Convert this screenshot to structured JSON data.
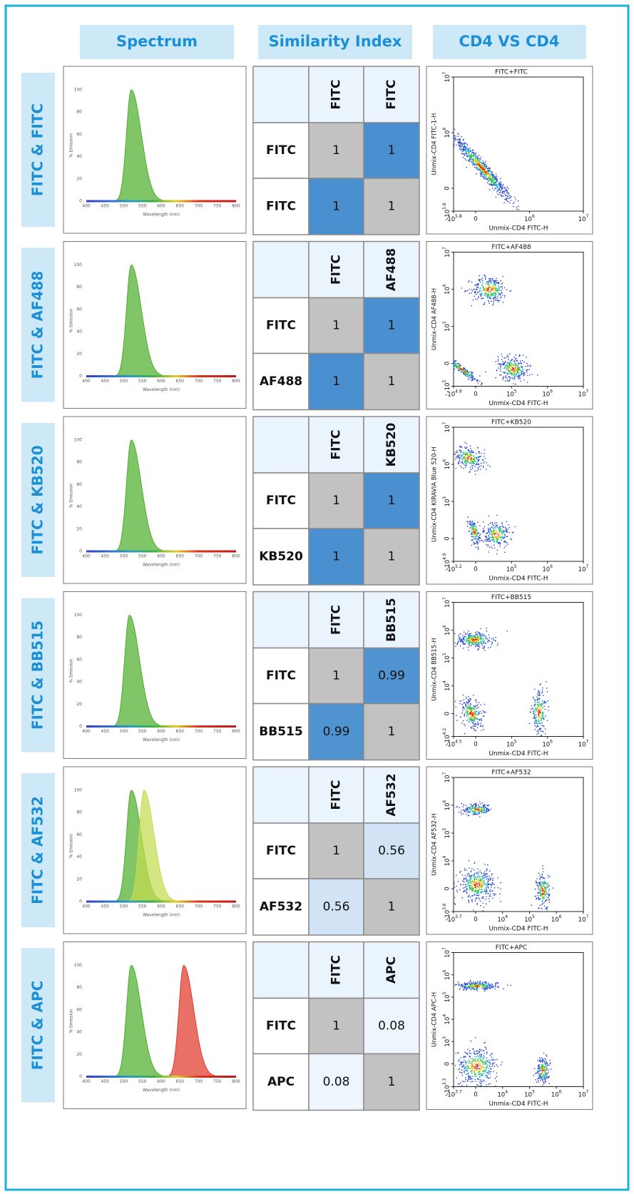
{
  "columns": [
    "Spectrum",
    "Similarity Index",
    "CD4 VS CD4"
  ],
  "spectrum_axis": {
    "x_label": "Wavelength (nm)",
    "y_label": "% Emission",
    "xticks": [
      400,
      450,
      500,
      550,
      600,
      650,
      700,
      750,
      800
    ],
    "yticks": [
      0,
      20,
      40,
      60,
      80,
      100
    ]
  },
  "rows": [
    {
      "label": "FITC & FITC",
      "dyes": [
        "FITC",
        "FITC"
      ],
      "emission_peaks": [
        520
      ],
      "colors": [
        "#4fae2c"
      ],
      "matrix": [
        [
          1,
          1
        ],
        [
          1,
          1
        ]
      ],
      "plot": {
        "title": "FITC+FITC",
        "x_label": "Unmix-CD4 FITC-H",
        "y_label": "Unmix-CD4 FITC-1-H",
        "xticks": [
          {
            "base": "-10",
            "exp": "5.8"
          },
          "0",
          {
            "base": "10",
            "exp": "6"
          },
          {
            "base": "10",
            "exp": "7"
          }
        ],
        "yticks": [
          {
            "base": "-10",
            "exp": "5.8"
          },
          "0",
          {
            "base": "10",
            "exp": "6"
          },
          {
            "base": "10",
            "exp": "7"
          }
        ]
      }
    },
    {
      "label": "FITC & AF488",
      "dyes": [
        "FITC",
        "AF488"
      ],
      "emission_peaks": [
        520
      ],
      "colors": [
        "#4fae2c"
      ],
      "matrix": [
        [
          1,
          1
        ],
        [
          1,
          1
        ]
      ],
      "plot": {
        "title": "FITC+AF488",
        "x_label": "Unmix-CD4 FITC-H",
        "y_label": "Unmix-CD4 AF488-H",
        "xticks": [
          {
            "base": "-10",
            "exp": "4.9"
          },
          "0",
          {
            "base": "10",
            "exp": "5"
          },
          {
            "base": "10",
            "exp": "6"
          },
          {
            "base": "10",
            "exp": "7"
          }
        ],
        "yticks": [
          {
            "base": "-10",
            "exp": "5"
          },
          "0",
          {
            "base": "10",
            "exp": "5"
          },
          {
            "base": "10",
            "exp": "6"
          },
          {
            "base": "10",
            "exp": "7"
          }
        ]
      }
    },
    {
      "label": "FITC & KB520",
      "dyes": [
        "FITC",
        "KB520"
      ],
      "emission_peaks": [
        520
      ],
      "colors": [
        "#4fae2c"
      ],
      "matrix": [
        [
          1,
          1
        ],
        [
          1,
          1
        ]
      ],
      "plot": {
        "title": "FITC+KB520",
        "x_label": "Unmix-CD4 FITC-H",
        "y_label": "Unmix-CD4 KIRAVIA Blue 520-H",
        "xticks": [
          {
            "base": "-10",
            "exp": "5.2"
          },
          "0",
          {
            "base": "10",
            "exp": "5"
          },
          {
            "base": "10",
            "exp": "6"
          },
          {
            "base": "10",
            "exp": "7"
          }
        ],
        "yticks": [
          {
            "base": "-10",
            "exp": "4.9"
          },
          "0",
          {
            "base": "10",
            "exp": "5"
          },
          {
            "base": "10",
            "exp": "6"
          },
          {
            "base": "10",
            "exp": "7"
          }
        ]
      }
    },
    {
      "label": "FITC & BB515",
      "dyes": [
        "FITC",
        "BB515"
      ],
      "emission_peaks": [
        515
      ],
      "colors": [
        "#4fae2c"
      ],
      "matrix": [
        [
          1,
          0.99
        ],
        [
          0.99,
          1
        ]
      ],
      "plot": {
        "title": "FITC+BB515",
        "x_label": "Unmix-CD4 FITC-H",
        "y_label": "Unmix-CD4 BB515-H",
        "xticks": [
          {
            "base": "-10",
            "exp": "4.5"
          },
          "0",
          {
            "base": "10",
            "exp": "5"
          },
          {
            "base": "10",
            "exp": "6"
          },
          {
            "base": "10",
            "exp": "7"
          }
        ],
        "yticks": [
          {
            "base": "-10",
            "exp": "4.2"
          },
          "0",
          {
            "base": "10",
            "exp": "4"
          },
          {
            "base": "10",
            "exp": "5"
          },
          {
            "base": "10",
            "exp": "6"
          },
          {
            "base": "10",
            "exp": "7"
          }
        ]
      }
    },
    {
      "label": "FITC & AF532",
      "dyes": [
        "FITC",
        "AF532"
      ],
      "emission_peaks": [
        520,
        554
      ],
      "colors": [
        "#4fae2c",
        "#c4dc52"
      ],
      "matrix": [
        [
          1,
          0.56
        ],
        [
          0.56,
          1
        ]
      ],
      "plot": {
        "title": "FITC+AF532",
        "x_label": "Unmix-CD4 FITC-H",
        "y_label": "Unmix-CD4 AF532-H",
        "xticks": [
          {
            "base": "-10",
            "exp": "3.7"
          },
          "0",
          {
            "base": "10",
            "exp": "4"
          },
          {
            "base": "10",
            "exp": "5"
          },
          {
            "base": "10",
            "exp": "6"
          },
          {
            "base": "10",
            "exp": "7"
          }
        ],
        "yticks": [
          {
            "base": "-10",
            "exp": "3.6"
          },
          "0",
          {
            "base": "10",
            "exp": "4"
          },
          {
            "base": "10",
            "exp": "5"
          },
          {
            "base": "10",
            "exp": "6"
          },
          {
            "base": "10",
            "exp": "7"
          }
        ]
      }
    },
    {
      "label": "FITC & APC",
      "dyes": [
        "FITC",
        "APC"
      ],
      "emission_peaks": [
        520,
        660
      ],
      "colors": [
        "#4fae2c",
        "#e0392c"
      ],
      "matrix": [
        [
          1,
          0.08
        ],
        [
          0.08,
          1
        ]
      ],
      "plot": {
        "title": "FITC+APC",
        "x_label": "Unmix-CD4 FITC-H",
        "y_label": "Unmix-CD4 APC-H",
        "xticks": [
          {
            "base": "-10",
            "exp": "3.7"
          },
          "0",
          {
            "base": "10",
            "exp": "4"
          },
          {
            "base": "10",
            "exp": "5"
          },
          {
            "base": "10",
            "exp": "6"
          },
          {
            "base": "10",
            "exp": "7"
          }
        ],
        "yticks": [
          {
            "base": "-10",
            "exp": "3.3"
          },
          "0",
          {
            "base": "10",
            "exp": "3"
          },
          {
            "base": "10",
            "exp": "4"
          },
          {
            "base": "10",
            "exp": "5"
          },
          {
            "base": "10",
            "exp": "6"
          },
          {
            "base": "10",
            "exp": "7"
          }
        ]
      }
    }
  ]
}
